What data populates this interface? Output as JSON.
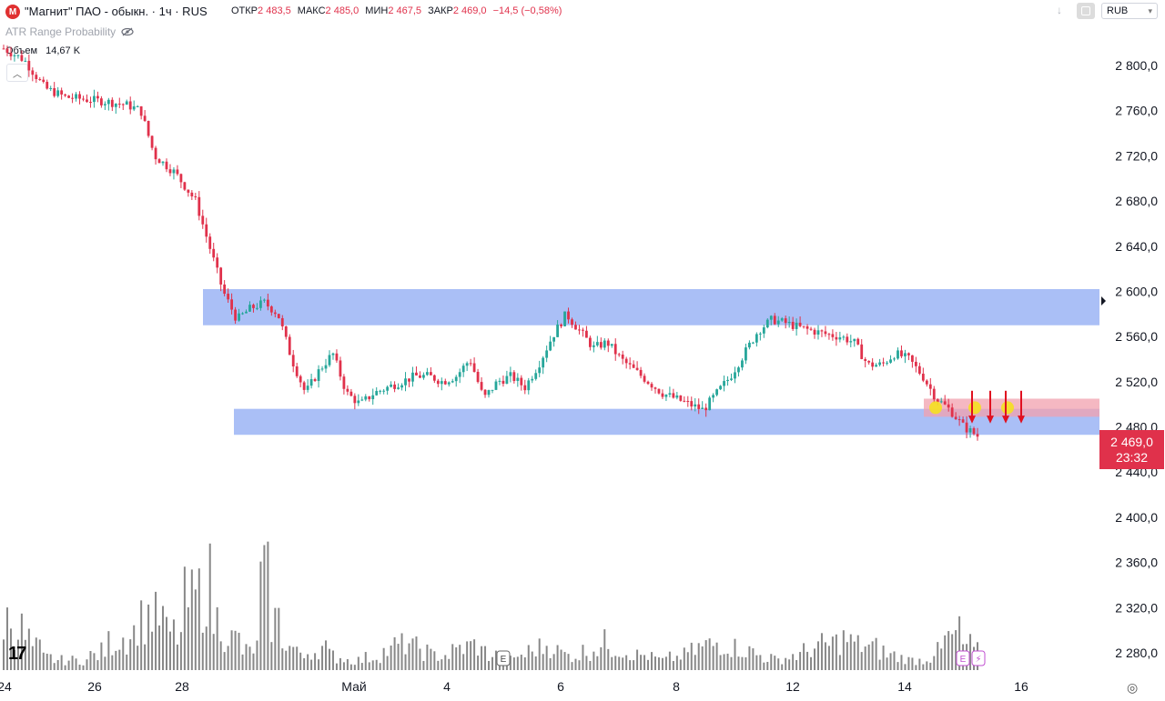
{
  "header": {
    "logo_text": "M",
    "title": "\"Магнит\" ПАО - обыкн. · 1ч · RUS",
    "ohlc": [
      {
        "label": "ОТКР",
        "value": "2 483,5"
      },
      {
        "label": "МАКС",
        "value": "2 485,0"
      },
      {
        "label": "МИН",
        "value": "2 467,5"
      },
      {
        "label": "ЗАКР",
        "value": "2 469,0"
      },
      {
        "label": "",
        "value": "−14,5 (−0,58%)"
      }
    ],
    "currency": "RUB"
  },
  "indicator_label": "ATR Range Probability",
  "volume_legend": {
    "label": "Объем",
    "value": "14,67 K"
  },
  "price_tag": {
    "price": "2 469,0",
    "countdown": "23:32"
  },
  "colors": {
    "up": "#26a69a",
    "down": "#e0314b",
    "zone": "#9bb4f5",
    "zone_red": "#f2a0ae",
    "volume": "#888888",
    "marker": "#f5e020",
    "arrow": "#e01020"
  },
  "icons": [
    "logo-icon",
    "eye-off-icon",
    "chevron-up-icon",
    "arrow-down-icon",
    "settings-icon",
    "tradingview-logo-icon",
    "earnings-icon",
    "lightning-icon"
  ],
  "chart_data": {
    "type": "candlestick",
    "y_axis": {
      "ticks": [
        2280,
        2320,
        2360,
        2400,
        2440,
        2480,
        2520,
        2560,
        2600,
        2640,
        2680,
        2720,
        2760,
        2800
      ],
      "tick_labels": [
        "2 280,0",
        "2 320,0",
        "2 360,0",
        "2 400,0",
        "2 440,0",
        "2 480,0",
        "2 520,0",
        "2 560,0",
        "2 600,0",
        "2 640,0",
        "2 680,0",
        "2 720,0",
        "2 760,0",
        "2 800,0"
      ],
      "range": [
        2268,
        2830
      ]
    },
    "x_axis": {
      "tick_labels": [
        "24",
        "26",
        "28",
        "Май",
        "4",
        "6",
        "8",
        "12",
        "14",
        "16"
      ]
    },
    "path": [
      [
        0,
        2815
      ],
      [
        3,
        2805
      ],
      [
        6,
        2780
      ],
      [
        9,
        2772
      ],
      [
        12,
        2770
      ],
      [
        15,
        2768
      ],
      [
        18,
        2765
      ],
      [
        20,
        2760
      ],
      [
        22,
        2720
      ],
      [
        25,
        2705
      ],
      [
        28,
        2680
      ],
      [
        30,
        2640
      ],
      [
        32,
        2600
      ],
      [
        34,
        2575
      ],
      [
        36,
        2585
      ],
      [
        38,
        2590
      ],
      [
        40,
        2580
      ],
      [
        42,
        2540
      ],
      [
        44,
        2510
      ],
      [
        46,
        2530
      ],
      [
        48,
        2545
      ],
      [
        50,
        2510
      ],
      [
        52,
        2500
      ],
      [
        54,
        2510
      ],
      [
        56,
        2515
      ],
      [
        58,
        2520
      ],
      [
        60,
        2525
      ],
      [
        62,
        2525
      ],
      [
        64,
        2520
      ],
      [
        66,
        2525
      ],
      [
        68,
        2540
      ],
      [
        70,
        2505
      ],
      [
        72,
        2520
      ],
      [
        74,
        2525
      ],
      [
        76,
        2515
      ],
      [
        78,
        2535
      ],
      [
        80,
        2560
      ],
      [
        82,
        2580
      ],
      [
        84,
        2565
      ],
      [
        86,
        2550
      ],
      [
        88,
        2555
      ],
      [
        90,
        2540
      ],
      [
        92,
        2530
      ],
      [
        94,
        2520
      ],
      [
        96,
        2510
      ],
      [
        98,
        2505
      ],
      [
        100,
        2500
      ],
      [
        102,
        2495
      ],
      [
        104,
        2510
      ],
      [
        106,
        2525
      ],
      [
        108,
        2545
      ],
      [
        110,
        2565
      ],
      [
        112,
        2575
      ],
      [
        114,
        2572
      ],
      [
        116,
        2568
      ],
      [
        118,
        2565
      ],
      [
        120,
        2562
      ],
      [
        122,
        2560
      ],
      [
        124,
        2555
      ],
      [
        126,
        2535
      ],
      [
        128,
        2535
      ],
      [
        130,
        2545
      ],
      [
        132,
        2540
      ],
      [
        134,
        2525
      ],
      [
        136,
        2505
      ],
      [
        138,
        2495
      ],
      [
        140,
        2480
      ],
      [
        142,
        2472
      ]
    ],
    "zones": [
      {
        "top": 2602,
        "bottom": 2570,
        "color": "blue"
      },
      {
        "top": 2496,
        "bottom": 2473,
        "color": "blue"
      },
      {
        "top": 2505,
        "bottom": 2489,
        "color": "red"
      }
    ],
    "volume_profile": [
      40,
      33,
      25,
      18,
      10,
      8,
      8,
      8,
      8,
      12,
      15,
      22,
      26,
      30,
      40,
      45,
      42,
      30,
      28,
      55,
      60,
      70,
      40,
      30,
      25,
      15,
      18,
      70,
      40,
      25,
      18,
      10,
      15,
      18,
      12,
      10,
      8,
      8,
      10,
      12,
      15,
      20,
      22,
      18,
      15,
      12,
      12,
      15,
      18,
      20,
      15,
      12,
      10,
      8,
      12,
      15,
      18,
      20,
      15,
      12,
      12,
      15,
      18,
      22,
      18,
      15,
      12,
      12,
      10,
      8,
      10,
      12,
      15,
      18,
      20,
      22,
      20,
      18,
      15,
      12,
      10,
      8,
      10,
      12,
      15,
      18,
      20,
      22,
      25,
      22,
      20,
      18,
      15,
      12,
      10,
      8,
      8,
      10,
      15,
      25,
      30,
      20,
      15
    ],
    "markers": [
      "E",
      "E",
      "⚡"
    ]
  }
}
